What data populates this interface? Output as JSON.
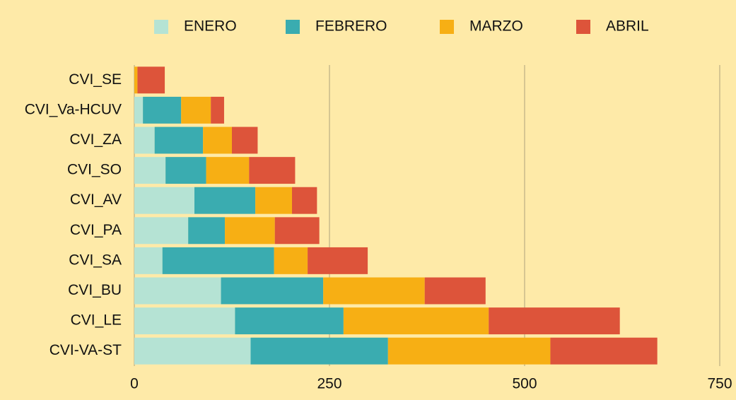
{
  "chart_data": {
    "type": "stacked-bar-horizontal",
    "categories": [
      "CVI_SE",
      "CVI_Va-HCUV",
      "CVI_ZA",
      "CVI_SO",
      "CVI_AV",
      "CVI_PA",
      "CVI_SA",
      "CVI_BU",
      "CVI_LE",
      "CVI-VA-ST"
    ],
    "series": [
      {
        "name": "ENERO",
        "color": "#b5e3d4",
        "values": [
          0,
          11,
          26,
          40,
          77,
          69,
          36,
          111,
          129,
          149
        ]
      },
      {
        "name": "FEBRERO",
        "color": "#3aacb0",
        "values": [
          0,
          49,
          62,
          52,
          78,
          47,
          143,
          131,
          139,
          176
        ]
      },
      {
        "name": "MARZO",
        "color": "#f7af14",
        "values": [
          4,
          38,
          37,
          55,
          47,
          64,
          43,
          130,
          186,
          208
        ]
      },
      {
        "name": "ABRIL",
        "color": "#dd543a",
        "values": [
          35,
          17,
          33,
          59,
          32,
          57,
          77,
          78,
          168,
          137
        ]
      }
    ],
    "xlim": [
      0,
      750
    ],
    "xticks": [
      0,
      250,
      500,
      750
    ],
    "grid": true,
    "legend": "top"
  }
}
